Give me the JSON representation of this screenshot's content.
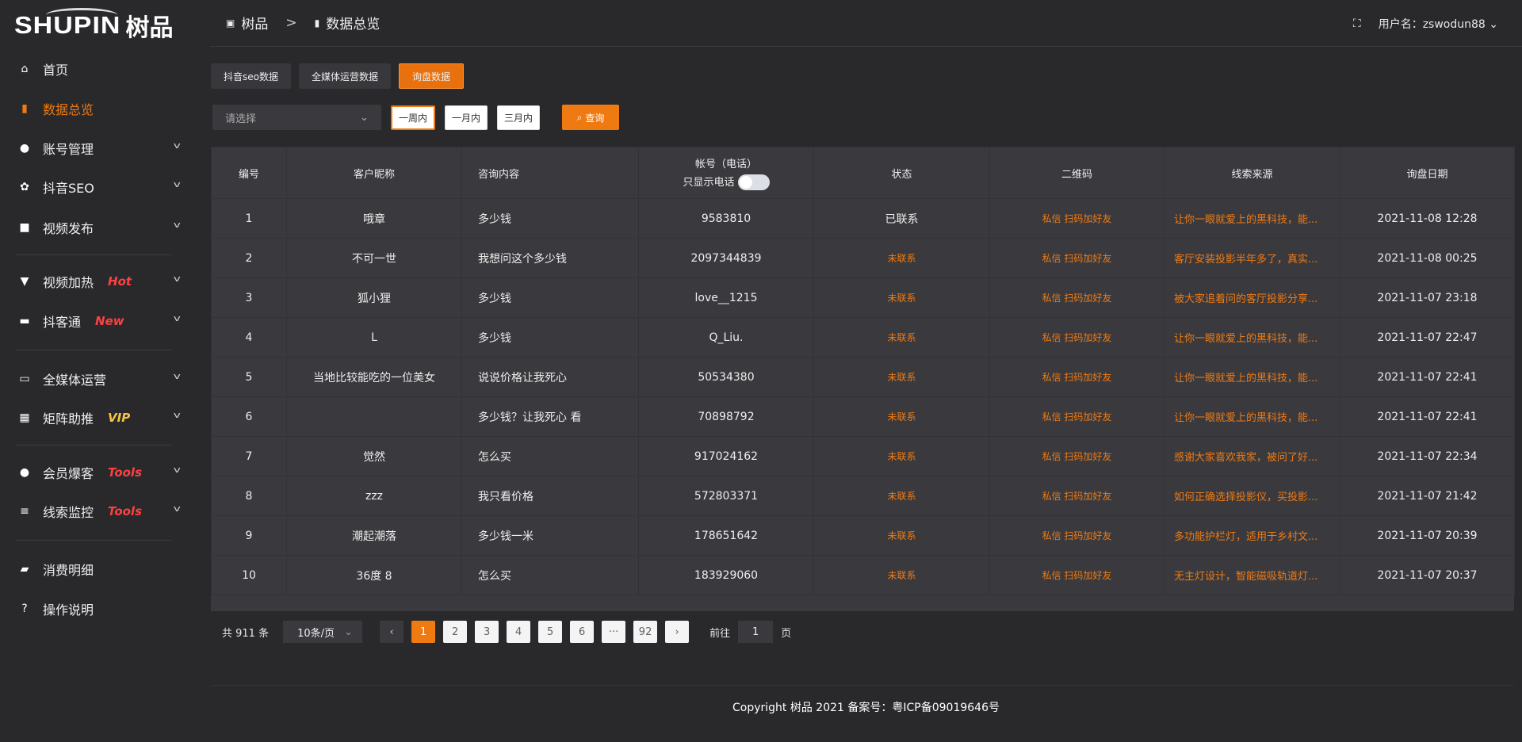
{
  "brand": {
    "logo_en": "SHUPIN",
    "logo_cn": "树品"
  },
  "colors": {
    "accent": "#f07a12",
    "badge_red": "#ff4040",
    "badge_gold": "#f5c242",
    "sidebar_bg": "#29292c",
    "table_bg": "#3a3a3e"
  },
  "sidebar": {
    "items": [
      {
        "label": "首页",
        "icon": "home-icon"
      },
      {
        "label": "数据总览",
        "icon": "bar-chart-icon",
        "active": true
      },
      {
        "label": "账号管理",
        "icon": "user-icon",
        "chevron": true
      },
      {
        "label": "抖音SEO",
        "icon": "gear-icon",
        "chevron": true
      },
      {
        "label": "视频发布",
        "icon": "video-camera-icon",
        "chevron": true
      },
      {
        "label": "视频加热",
        "icon": "fire-sign-icon",
        "badge": "Hot",
        "chevron": true
      },
      {
        "label": "抖客通",
        "icon": "chat-icon",
        "badge": "New",
        "chevron": true
      },
      {
        "label": "全媒体运营",
        "icon": "monitor-icon",
        "chevron": true
      },
      {
        "label": "矩阵助推",
        "icon": "grid-icon",
        "badge": "VIP",
        "chevron": true
      },
      {
        "label": "会员爆客",
        "icon": "user-icon",
        "badge": "Tools",
        "chevron": true
      },
      {
        "label": "线索监控",
        "icon": "sliders-icon",
        "badge": "Tools",
        "chevron": true
      },
      {
        "label": "消费明细",
        "icon": "wallet-icon"
      },
      {
        "label": "操作说明",
        "icon": "help-icon"
      }
    ]
  },
  "header": {
    "breadcrumb": [
      "树品",
      "数据总览"
    ],
    "breadcrumb_sep": ">",
    "user_label": "用户名：zswodun88"
  },
  "tabs": [
    "抖音seo数据",
    "全媒体运营数据",
    "询盘数据"
  ],
  "filters": {
    "select_placeholder": "请选择",
    "ranges": [
      "一周内",
      "一月内",
      "三月内"
    ],
    "query_label": "查询"
  },
  "table": {
    "headers": [
      "编号",
      "客户昵称",
      "咨询内容",
      "帐号（电话）",
      "状态",
      "二维码",
      "线索来源",
      "询盘日期"
    ],
    "phone_toggle_label": "只显示电话",
    "rows": [
      [
        "1",
        "哦章",
        "多少钱",
        "9583810",
        "已联系",
        "私信 扫码加好友",
        "让你一眼就爱上的黑科技，能...",
        "2021-11-08 12:28"
      ],
      [
        "2",
        "不可一世",
        "我想问这个多少钱",
        "2097344839",
        "未联系",
        "私信 扫码加好友",
        "客厅安装投影半年多了，真实...",
        "2021-11-08 00:25"
      ],
      [
        "3",
        "狐小狸",
        "多少钱",
        "love__1215",
        "未联系",
        "私信 扫码加好友",
        "被大家追着问的客厅投影分享...",
        "2021-11-07 23:18"
      ],
      [
        "4",
        "L",
        "多少钱",
        "Q_Liu.",
        "未联系",
        "私信 扫码加好友",
        "让你一眼就爱上的黑科技，能...",
        "2021-11-07 22:47"
      ],
      [
        "5",
        "当地比较能吃的一位美女",
        "说说价格让我死心",
        "50534380",
        "未联系",
        "私信 扫码加好友",
        "让你一眼就爱上的黑科技，能...",
        "2021-11-07 22:41"
      ],
      [
        "6",
        "",
        "多少钱？让我死心 看",
        "70898792",
        "未联系",
        "私信 扫码加好友",
        "让你一眼就爱上的黑科技，能...",
        "2021-11-07 22:41"
      ],
      [
        "7",
        "觉然",
        "怎么买",
        "917024162",
        "未联系",
        "私信 扫码加好友",
        "感谢大家喜欢我家，被问了好...",
        "2021-11-07 22:34"
      ],
      [
        "8",
        "zzz",
        "我只看价格",
        "572803371",
        "未联系",
        "私信 扫码加好友",
        "如何正确选择投影仪，买投影...",
        "2021-11-07 21:42"
      ],
      [
        "9",
        "潮起潮落",
        "多少钱一米",
        "178651642",
        "未联系",
        "私信 扫码加好友",
        "多功能护栏灯，适用于乡村文...",
        "2021-11-07 20:39"
      ],
      [
        "10",
        "36度 8",
        "怎么买",
        "183929060",
        "未联系",
        "私信 扫码加好友",
        "无主灯设计，智能磁吸轨道灯...",
        "2021-11-07 20:37"
      ]
    ]
  },
  "pagination": {
    "total": "共 911 条",
    "page_size": "10条/页",
    "pages": [
      "1",
      "2",
      "3",
      "4",
      "5",
      "6",
      "···",
      "92"
    ],
    "current": "1",
    "goto_prefix": "前往",
    "goto_value": "1",
    "goto_suffix": "页"
  },
  "footer": {
    "copyright": "Copyright 树品 2021 备案号：粤ICP备09019646号"
  }
}
